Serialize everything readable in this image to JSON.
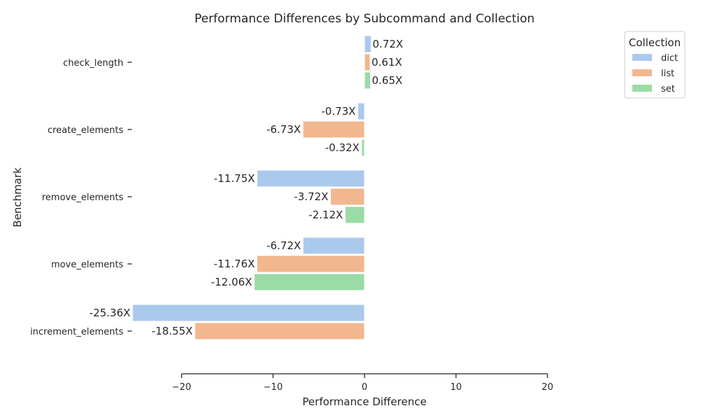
{
  "chart_data": {
    "type": "bar",
    "orientation": "horizontal",
    "title": "Performance Differences by Subcommand and Collection",
    "xlabel": "Performance Difference",
    "ylabel": "Benchmark",
    "xlim": [
      -25.36,
      20
    ],
    "xticks": [
      -20,
      -10,
      0,
      10,
      20
    ],
    "xtick_labels": [
      "−20",
      "−10",
      "0",
      "10",
      "20"
    ],
    "grid": false,
    "categories": [
      "check_length",
      "create_elements",
      "remove_elements",
      "move_elements",
      "increment_elements"
    ],
    "legend": {
      "title": "Collection",
      "position": "top-right"
    },
    "series": [
      {
        "name": "dict",
        "color": "#abc9ed",
        "values": [
          0.72,
          -0.73,
          -11.75,
          -6.72,
          -25.36
        ],
        "labels": [
          "0.72X",
          "-0.73X",
          "-11.75X",
          "-6.72X",
          "-25.36X"
        ]
      },
      {
        "name": "list",
        "color": "#f2b78f",
        "values": [
          0.61,
          -6.73,
          -3.72,
          -11.76,
          -18.55
        ],
        "labels": [
          "0.61X",
          "-6.73X",
          "-3.72X",
          "-11.76X",
          "-18.55X"
        ]
      },
      {
        "name": "set",
        "color": "#9bdba6",
        "values": [
          0.65,
          -0.32,
          -2.12,
          -12.06,
          null
        ],
        "labels": [
          "0.65X",
          "-0.32X",
          "-2.12X",
          "-12.06X",
          null
        ]
      }
    ]
  }
}
